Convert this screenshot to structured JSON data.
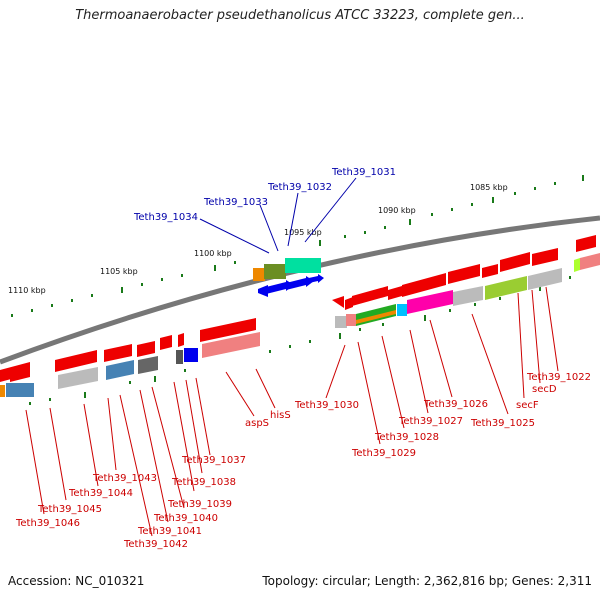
{
  "title": "Thermoanaerobacter pseudethanolicus ATCC 33223, complete gen...",
  "footer": {
    "accession": "Accession: NC_010321",
    "topology": "Topology: circular; Length: 2,362,816 bp; Genes: 2,311"
  },
  "kbp_labels": [
    "1085 kbp",
    "1090 kbp",
    "1095 kbp",
    "1100 kbp",
    "1105 kbp",
    "1110 kbp"
  ],
  "blue_labels": [
    "Teth39_1031",
    "Teth39_1032",
    "Teth39_1033",
    "Teth39_1034"
  ],
  "red_labels": {
    "right": [
      "Teth39_1022",
      "secD",
      "secF",
      "Teth39_1025",
      "Teth39_1026",
      "Teth39_1027",
      "Teth39_1028",
      "Teth39_1029",
      "Teth39_1030"
    ],
    "middle": [
      "hisS",
      "aspS",
      "Teth39_1037",
      "Teth39_1038",
      "Teth39_1039",
      "Teth39_1040",
      "Teth39_1041",
      "Teth39_1042"
    ],
    "left": [
      "Teth39_1043",
      "Teth39_1044",
      "Teth39_1045",
      "Teth39_1046"
    ]
  },
  "colors": {
    "backbone": "#808080",
    "gene_red": "#ee0000",
    "gene_blue": "#0000ee",
    "tick_green": "#1a7a1a",
    "label_red": "#cc0000",
    "label_blue": "#0000aa"
  }
}
